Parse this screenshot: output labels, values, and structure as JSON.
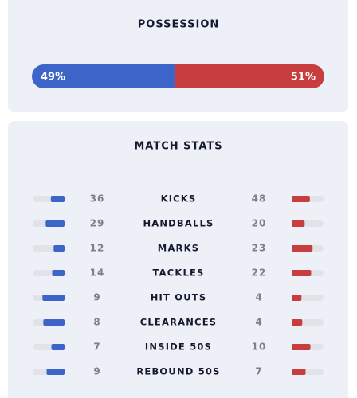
{
  "possession": {
    "title": "POSSESSION",
    "home": {
      "value": 49,
      "label": "49%"
    },
    "away": {
      "value": 51,
      "label": "51%"
    }
  },
  "stats": {
    "title": "MATCH STATS",
    "rows": [
      {
        "name": "KICKS",
        "home": 36,
        "away": 48
      },
      {
        "name": "HANDBALLS",
        "home": 29,
        "away": 20
      },
      {
        "name": "MARKS",
        "home": 12,
        "away": 23
      },
      {
        "name": "TACKLES",
        "home": 14,
        "away": 22
      },
      {
        "name": "HIT OUTS",
        "home": 9,
        "away": 4
      },
      {
        "name": "CLEARANCES",
        "home": 8,
        "away": 4
      },
      {
        "name": "INSIDE 50S",
        "home": 7,
        "away": 10
      },
      {
        "name": "REBOUND 50S",
        "home": 9,
        "away": 7
      }
    ]
  }
}
